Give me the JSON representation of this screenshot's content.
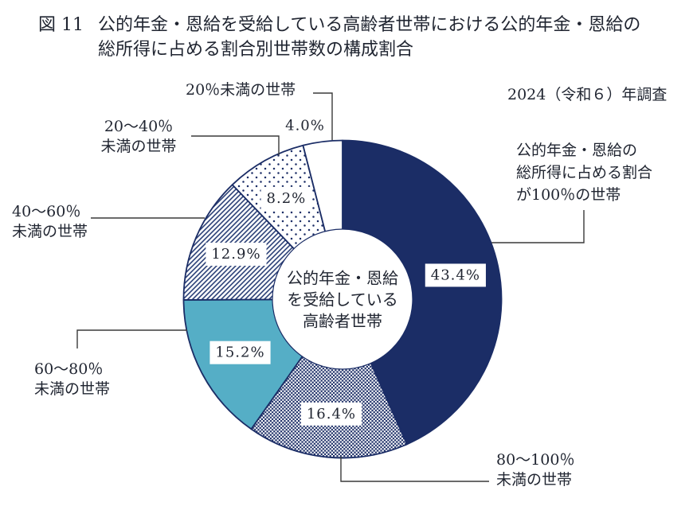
{
  "figure": {
    "tag": "図 11",
    "title_line1": "公的年金・恩給を受給している高齢者世帯における公的年金・恩給の",
    "title_line2": "総所得に占める割合別世帯数の構成割合",
    "survey_note": "2024（令和６）年調査"
  },
  "center_label": {
    "lines": [
      "公的年金・恩給",
      "を受給している",
      "高齢者世帯"
    ]
  },
  "callouts": {
    "under20": {
      "lines": [
        "20％未満の世帯"
      ]
    },
    "r20_40": {
      "lines": [
        "20～40％",
        "未満の世帯"
      ]
    },
    "r40_60": {
      "lines": [
        "40～60％",
        "未満の世帯"
      ]
    },
    "r60_80": {
      "lines": [
        "60～80％",
        "未満の世帯"
      ]
    },
    "r80_100": {
      "lines": [
        "80～100％",
        "未満の世帯"
      ]
    },
    "full100": {
      "lines": [
        "公的年金・恩給の",
        "総所得に占める割合",
        "が100％の世帯"
      ]
    }
  },
  "chart_data": {
    "type": "pie",
    "donut": true,
    "title": "公的年金・恩給を受給している高齢者世帯における公的年金・恩給の総所得に占める割合別世帯数の構成割合",
    "subtitle": "2024（令和６）年調査",
    "center_text": "公的年金・恩給を受給している高齢者世帯",
    "start_angle_deg": 0,
    "direction": "clockwise",
    "legend_position": "callouts-around-chart",
    "categories": [
      "公的年金・恩給の総所得に占める割合が100％の世帯",
      "80～100％未満の世帯",
      "60～80％未満の世帯",
      "40～60％未満の世帯",
      "20～40％未満の世帯",
      "20％未満の世帯"
    ],
    "values": [
      43.4,
      16.4,
      15.2,
      12.9,
      8.2,
      4.0
    ],
    "value_labels": [
      "43.4%",
      "16.4%",
      "15.2%",
      "12.9%",
      "8.2%",
      "4.0%"
    ],
    "segment_styles": [
      "solid-navy",
      "checker",
      "solid-teal",
      "hatch",
      "dots",
      "solid-white"
    ]
  },
  "colors": {
    "navy": "#1b2d66",
    "teal": "#55aec6",
    "white": "#ffffff",
    "text": "#1f2430",
    "leader_line": "#3a3a3a"
  }
}
